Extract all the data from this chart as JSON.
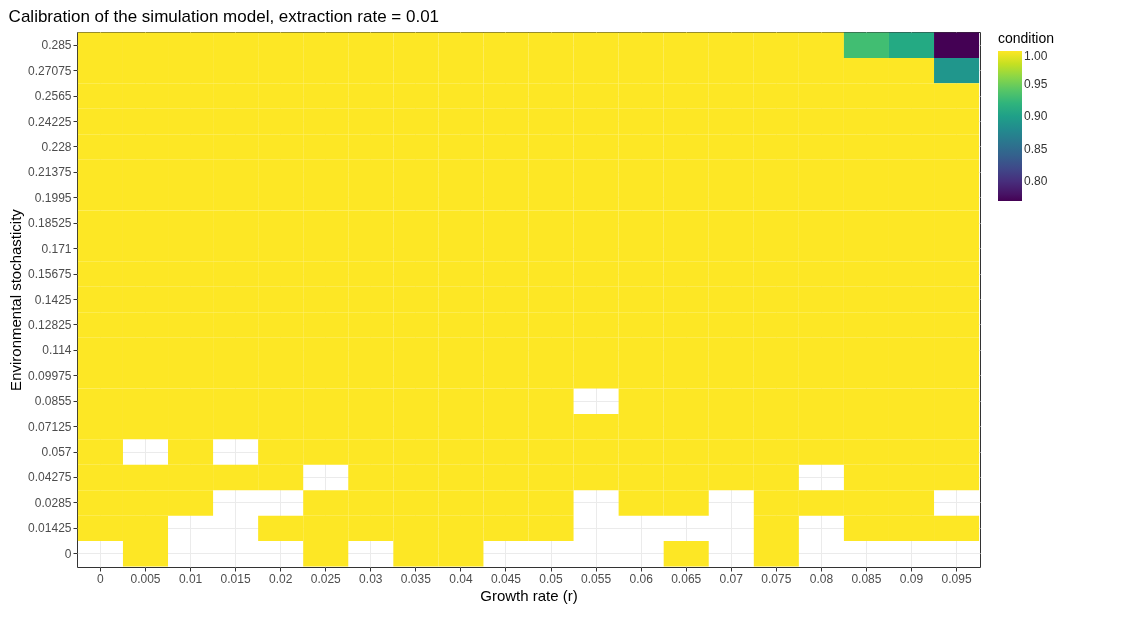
{
  "chart_data": {
    "type": "heatmap",
    "title": "Calibration of the simulation model, extraction rate = 0.01",
    "xlabel": "Growth rate (r)",
    "ylabel": "Environmental stochasticity",
    "legend_title": "condition",
    "categories": [
      "0",
      "0.005",
      "0.01",
      "0.015",
      "0.02",
      "0.025",
      "0.03",
      "0.035",
      "0.04",
      "0.045",
      "0.05",
      "0.055",
      "0.06",
      "0.065",
      "0.07",
      "0.075",
      "0.08",
      "0.085",
      "0.09",
      "0.095"
    ],
    "y_categories": [
      "0.285",
      "0.27075",
      "0.2565",
      "0.24225",
      "0.228",
      "0.21375",
      "0.1995",
      "0.18525",
      "0.171",
      "0.15675",
      "0.1425",
      "0.12825",
      "0.114",
      "0.09975",
      "0.0855",
      "0.07125",
      "0.057",
      "0.04275",
      "0.0285",
      "0.01425",
      "0"
    ],
    "cells": [
      [
        1,
        1,
        1,
        1,
        1,
        1,
        1,
        1,
        1,
        1,
        1,
        1,
        1,
        1,
        1,
        1,
        1,
        0.93,
        0.91,
        0.77
      ],
      [
        1,
        1,
        1,
        1,
        1,
        1,
        1,
        1,
        1,
        1,
        1,
        1,
        1,
        1,
        1,
        1,
        1,
        1,
        1,
        0.89
      ],
      [
        1,
        1,
        1,
        1,
        1,
        1,
        1,
        1,
        1,
        1,
        1,
        1,
        1,
        1,
        1,
        1,
        1,
        1,
        1,
        1
      ],
      [
        1,
        1,
        1,
        1,
        1,
        1,
        1,
        1,
        1,
        1,
        1,
        1,
        1,
        1,
        1,
        1,
        1,
        1,
        1,
        1
      ],
      [
        1,
        1,
        1,
        1,
        1,
        1,
        1,
        1,
        1,
        1,
        1,
        1,
        1,
        1,
        1,
        1,
        1,
        1,
        1,
        1
      ],
      [
        1,
        1,
        1,
        1,
        1,
        1,
        1,
        1,
        1,
        1,
        1,
        1,
        1,
        1,
        1,
        1,
        1,
        1,
        1,
        1
      ],
      [
        1,
        1,
        1,
        1,
        1,
        1,
        1,
        1,
        1,
        1,
        1,
        1,
        1,
        1,
        1,
        1,
        1,
        1,
        1,
        1
      ],
      [
        1,
        1,
        1,
        1,
        1,
        1,
        1,
        1,
        1,
        1,
        1,
        1,
        1,
        1,
        1,
        1,
        1,
        1,
        1,
        1
      ],
      [
        1,
        1,
        1,
        1,
        1,
        1,
        1,
        1,
        1,
        1,
        1,
        1,
        1,
        1,
        1,
        1,
        1,
        1,
        1,
        1
      ],
      [
        1,
        1,
        1,
        1,
        1,
        1,
        1,
        1,
        1,
        1,
        1,
        1,
        1,
        1,
        1,
        1,
        1,
        1,
        1,
        1
      ],
      [
        1,
        1,
        1,
        1,
        1,
        1,
        1,
        1,
        1,
        1,
        1,
        1,
        1,
        1,
        1,
        1,
        1,
        1,
        1,
        1
      ],
      [
        1,
        1,
        1,
        1,
        1,
        1,
        1,
        1,
        1,
        1,
        1,
        1,
        1,
        1,
        1,
        1,
        1,
        1,
        1,
        1
      ],
      [
        1,
        1,
        1,
        1,
        1,
        1,
        1,
        1,
        1,
        1,
        1,
        1,
        1,
        1,
        1,
        1,
        1,
        1,
        1,
        1
      ],
      [
        1,
        1,
        1,
        1,
        1,
        1,
        1,
        1,
        1,
        1,
        1,
        1,
        1,
        1,
        1,
        1,
        1,
        1,
        1,
        1
      ],
      [
        1,
        1,
        1,
        1,
        1,
        1,
        1,
        1,
        1,
        1,
        1,
        null,
        1,
        1,
        1,
        1,
        1,
        1,
        1,
        1
      ],
      [
        1,
        1,
        1,
        1,
        1,
        1,
        1,
        1,
        1,
        1,
        1,
        1,
        1,
        1,
        1,
        1,
        1,
        1,
        1,
        1
      ],
      [
        1,
        null,
        1,
        null,
        1,
        1,
        1,
        1,
        1,
        1,
        1,
        1,
        1,
        1,
        1,
        1,
        1,
        1,
        1,
        1
      ],
      [
        1,
        1,
        1,
        1,
        1,
        null,
        1,
        1,
        1,
        1,
        1,
        1,
        1,
        1,
        1,
        1,
        null,
        1,
        1,
        1
      ],
      [
        1,
        1,
        1,
        null,
        null,
        1,
        1,
        1,
        1,
        1,
        1,
        null,
        1,
        1,
        null,
        1,
        1,
        1,
        1,
        null
      ],
      [
        1,
        1,
        null,
        null,
        1,
        1,
        1,
        1,
        1,
        1,
        1,
        null,
        null,
        null,
        null,
        1,
        null,
        1,
        1,
        1
      ],
      [
        null,
        1,
        null,
        null,
        null,
        1,
        null,
        1,
        1,
        null,
        null,
        null,
        null,
        1,
        null,
        1,
        null,
        null,
        null,
        null
      ]
    ],
    "clim": [
      0.77,
      1.0
    ],
    "cticks": [
      {
        "value": 0.8,
        "label": "0.80"
      },
      {
        "value": 0.85,
        "label": "0.85"
      },
      {
        "value": 0.9,
        "label": "0.90"
      },
      {
        "value": 0.95,
        "label": "0.95"
      },
      {
        "value": 1,
        "label": "1.00"
      }
    ],
    "grid": true
  }
}
